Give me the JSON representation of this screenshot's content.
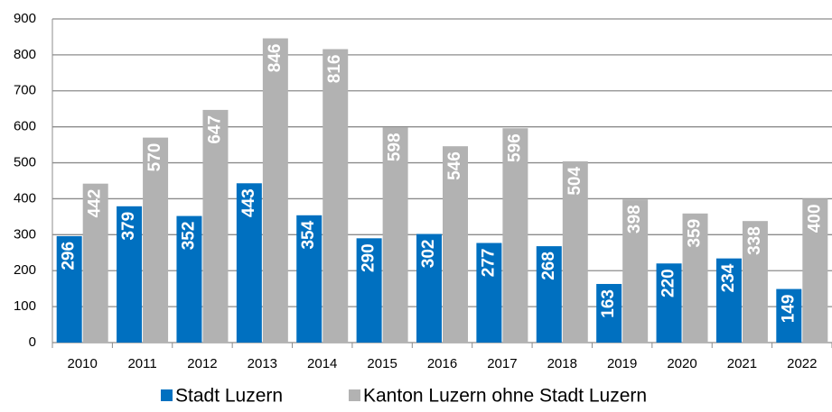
{
  "chart_data": {
    "type": "bar",
    "categories": [
      "2010",
      "2011",
      "2012",
      "2013",
      "2014",
      "2015",
      "2016",
      "2017",
      "2018",
      "2019",
      "2020",
      "2021",
      "2022"
    ],
    "series": [
      {
        "name": "Stadt Luzern",
        "color": "#0070c0",
        "values": [
          296,
          379,
          352,
          443,
          354,
          290,
          302,
          277,
          268,
          163,
          220,
          234,
          149
        ]
      },
      {
        "name": "Kanton Luzern ohne Stadt Luzern",
        "color": "#b2b2b2",
        "values": [
          442,
          570,
          647,
          846,
          816,
          598,
          546,
          596,
          504,
          398,
          359,
          338,
          400
        ]
      }
    ],
    "ylim": [
      0,
      900
    ],
    "yticks": [
      0,
      100,
      200,
      300,
      400,
      500,
      600,
      700,
      800,
      900
    ],
    "grid": true,
    "legend": "bottom"
  }
}
